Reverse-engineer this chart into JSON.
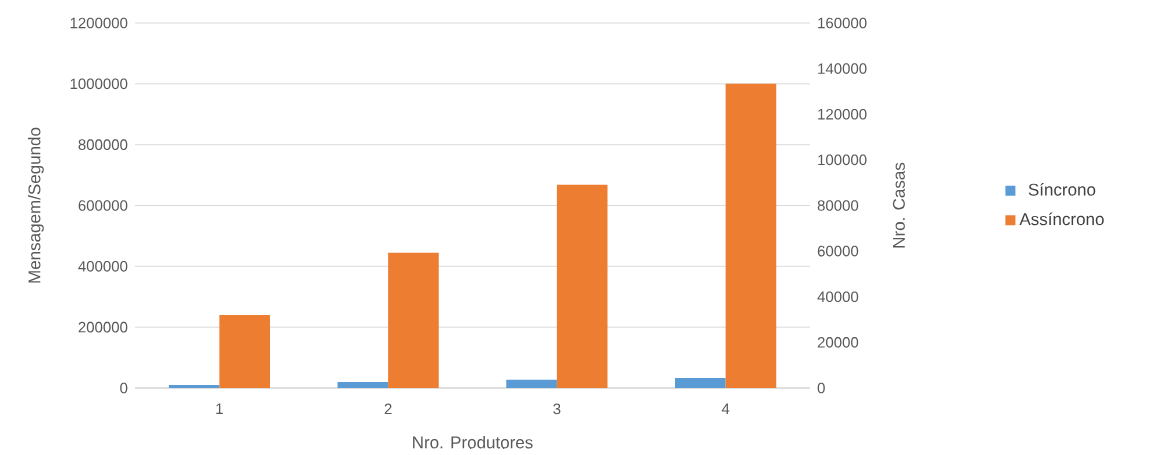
{
  "chart_data": {
    "type": "bar",
    "xlabel": "Nro. Produtores",
    "ylabel": "Mensagem/Segundo",
    "y2label": "Nro. Casas",
    "categories": [
      "1",
      "2",
      "3",
      "4"
    ],
    "series": [
      {
        "name": "Síncrono",
        "color": "#5b9bd5",
        "values": [
          10000,
          20000,
          27000,
          33000
        ]
      },
      {
        "name": "Assíncrono",
        "color": "#ed7d31",
        "values": [
          240000,
          445000,
          668000,
          1000000
        ]
      }
    ],
    "ylim": [
      0,
      1200000
    ],
    "yticks": [
      0,
      200000,
      400000,
      600000,
      800000,
      1000000,
      1200000
    ],
    "y2lim": [
      0,
      160000
    ],
    "y2ticks": [
      0,
      20000,
      40000,
      60000,
      80000,
      100000,
      120000,
      140000,
      160000
    ],
    "grid": "y",
    "legend": "right"
  }
}
